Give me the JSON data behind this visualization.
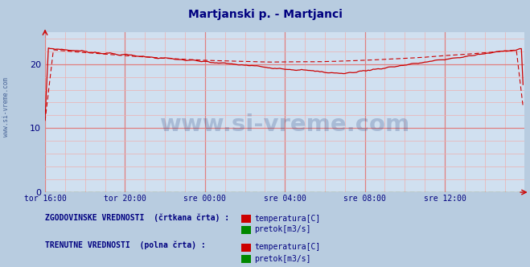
{
  "title": "Martjanski p. - Martjanci",
  "title_color": "#000080",
  "title_fontsize": 10,
  "bg_color": "#d0e0f0",
  "fig_bg_color": "#b8cce0",
  "xlabel_ticks": [
    "tor 16:00",
    "tor 20:00",
    "sre 00:00",
    "sre 04:00",
    "sre 08:00",
    "sre 12:00"
  ],
  "yticks": [
    0,
    10,
    20
  ],
  "ylim": [
    0,
    25
  ],
  "xlim": [
    0,
    288
  ],
  "grid_color_major": "#e08080",
  "grid_color_minor": "#eeb0b0",
  "temp_color": "#cc0000",
  "flow_color": "#008800",
  "watermark": "www.si-vreme.com",
  "watermark_color": "#1a3a7a",
  "sidebar_text": "www.si-vreme.com",
  "sidebar_color": "#1a3a7a",
  "legend_hist_label": "ZGODOVINSKE VREDNOSTI  (črtkana črta) :",
  "legend_curr_label": "TRENUTNE VREDNOSTI  (polna črta) :",
  "legend_temp_label": "temperatura[C]",
  "legend_flow_label": "pretok[m3/s]",
  "legend_color": "#000080",
  "n_points": 288
}
